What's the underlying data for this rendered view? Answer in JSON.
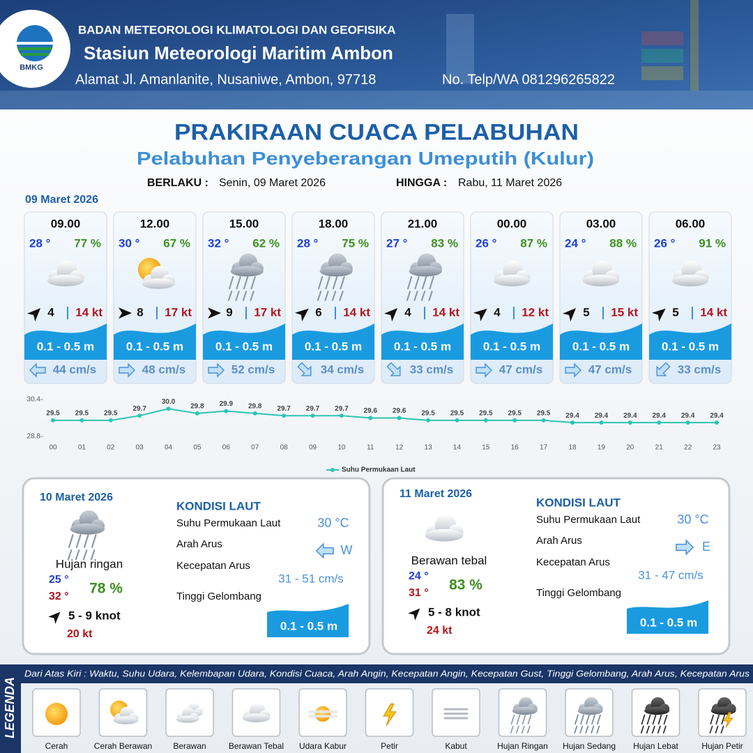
{
  "header": {
    "logo_text": "BMKG",
    "organization": "BADAN METEOROLOGI KLIMATOLOGI DAN GEOFISIKA",
    "station": "Stasiun Meteorologi Maritim Ambon",
    "address": "Alamat Jl. Amanlanite, Nusaniwe, Ambon, 97718",
    "phone": "No. Telp/WA  081296265822"
  },
  "title": "PRAKIRAAN CUACA PELABUHAN",
  "subtitle": "Pelabuhan Penyeberangan Umeputih (Kulur)",
  "validity": {
    "from_label": "BERLAKU :",
    "from": "Senin, 09 Maret 2026",
    "until_label": "HINGGA :",
    "until": "Rabu, 11 Maret 2026"
  },
  "day1": {
    "date": "09 Maret 2026",
    "slots": [
      {
        "time": "09.00",
        "temp": "28 °",
        "humidity": "77 %",
        "wind": "4",
        "gust": "14 kt",
        "wave": "0.1 - 0.5 m",
        "current": "44 cm/s"
      },
      {
        "time": "12.00",
        "temp": "30 °",
        "humidity": "67 %",
        "wind": "8",
        "gust": "17 kt",
        "wave": "0.1 - 0.5 m",
        "current": "48 cm/s"
      },
      {
        "time": "15.00",
        "temp": "32 °",
        "humidity": "62 %",
        "wind": "9",
        "gust": "17 kt",
        "wave": "0.1 - 0.5 m",
        "current": "52 cm/s"
      },
      {
        "time": "18.00",
        "temp": "28 °",
        "humidity": "75 %",
        "wind": "6",
        "gust": "14 kt",
        "wave": "0.1 - 0.5 m",
        "current": "34 cm/s"
      },
      {
        "time": "21.00",
        "temp": "27 °",
        "humidity": "83 %",
        "wind": "4",
        "gust": "14 kt",
        "wave": "0.1 - 0.5 m",
        "current": "33 cm/s"
      },
      {
        "time": "00.00",
        "temp": "26 °",
        "humidity": "87 %",
        "wind": "4",
        "gust": "12 kt",
        "wave": "0.1 - 0.5 m",
        "current": "47 cm/s"
      },
      {
        "time": "03.00",
        "temp": "24 °",
        "humidity": "88 %",
        "wind": "5",
        "gust": "15 kt",
        "wave": "0.1 - 0.5 m",
        "current": "47 cm/s"
      },
      {
        "time": "06.00",
        "temp": "26 °",
        "humidity": "91 %",
        "wind": "5",
        "gust": "14 kt",
        "wave": "0.1 - 0.5 m",
        "current": "33 cm/s"
      }
    ]
  },
  "chart_data": {
    "type": "line",
    "categories": [
      "00",
      "01",
      "02",
      "03",
      "04",
      "05",
      "06",
      "07",
      "08",
      "09",
      "10",
      "11",
      "12",
      "13",
      "14",
      "15",
      "16",
      "17",
      "18",
      "19",
      "20",
      "21",
      "22",
      "23"
    ],
    "series": [
      {
        "name": "Suhu Permukaan Laut",
        "color": "#2cc4b4",
        "values": [
          29.5,
          29.5,
          29.5,
          29.7,
          30.0,
          29.8,
          29.9,
          29.8,
          29.7,
          29.7,
          29.7,
          29.6,
          29.6,
          29.5,
          29.5,
          29.5,
          29.5,
          29.5,
          29.4,
          29.4,
          29.4,
          29.4,
          29.4,
          29.4
        ],
        "value_labels": [
          "29.5",
          "29.5",
          "29.5",
          "29.7",
          "30.0",
          "29.8",
          "29.9",
          "29.8",
          "29.7",
          "29.7",
          "29.7",
          "29.6",
          "29.6",
          "29.5",
          "29.5",
          "29.5",
          "29.5",
          "29.5",
          "29.4",
          "29.4",
          "29.4",
          "29.4",
          "29.4",
          "29.4"
        ]
      }
    ],
    "ylim": [
      28.8,
      30.4
    ],
    "yticks": [
      28.8,
      30.4
    ],
    "legend": "bottom"
  },
  "days": [
    {
      "date": "10 Maret 2026",
      "condition": "Hujan ringan",
      "temp_min": "25 °",
      "temp_max": "32 °",
      "humidity": "78 %",
      "wind": "5  - 9 knot",
      "gust": "20 kt",
      "sea_heading": "KONDISI LAUT",
      "sst_label": "Suhu Permukaan Laut",
      "sst": "30 °C",
      "dir_label": "Arah Arus",
      "dir": "W",
      "speed_label": "Kecepatan Arus",
      "speed": "31 - 51 cm/s",
      "wave_label": "Tinggi Gelombang",
      "wave": "0.1 - 0.5 m"
    },
    {
      "date": "11 Maret 2026",
      "condition": "Berawan tebal",
      "temp_min": "24 °",
      "temp_max": "31 °",
      "humidity": "83 %",
      "wind": "5 - 8 knot",
      "gust": "24 kt",
      "sea_heading": "KONDISI LAUT",
      "sst_label": "Suhu Permukaan Laut",
      "sst": "30 °C",
      "dir_label": "Arah Arus",
      "dir": "E",
      "speed_label": "Kecepatan Arus",
      "speed": "31 - 47 cm/s",
      "wave_label": "Tinggi Gelombang",
      "wave": "0.1 - 0.5 m"
    }
  ],
  "legend": {
    "title": "LEGENDA",
    "description": "Dari Atas Kiri : Waktu, Suhu Udara, Kelembapan Udara, Kondisi Cuaca, Arah Angin, Kecepatan Angin, Kecepatan Gust, Tinggi Gelombang, Arah Arus, Kecepatan Arus",
    "items": [
      "Cerah",
      "Cerah Berawan",
      "Berawan",
      "Berawan Tebal",
      "Udara Kabur",
      "Petir",
      "Kabut",
      "Hujan Ringan",
      "Hujan Sedang",
      "Hujan Lebat",
      "Hujan Petir"
    ]
  }
}
